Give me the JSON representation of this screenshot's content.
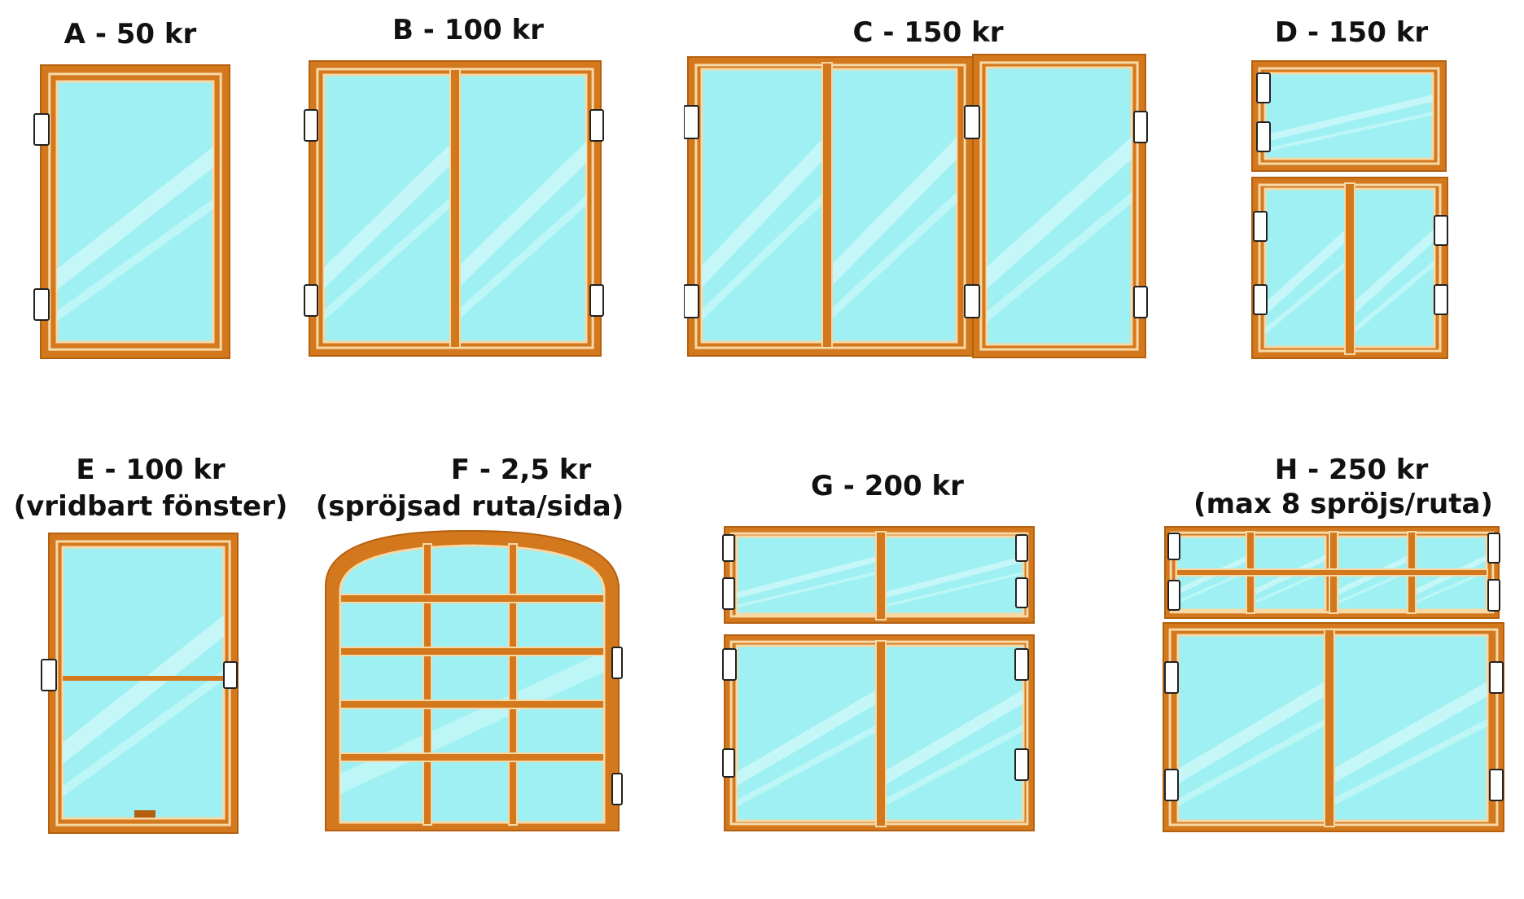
{
  "windows": [
    {
      "id": "A",
      "label": "A - 50 kr"
    },
    {
      "id": "B",
      "label": "B - 100 kr"
    },
    {
      "id": "C",
      "label": "C - 150 kr"
    },
    {
      "id": "D",
      "label": "D - 150 kr"
    },
    {
      "id": "E",
      "label": "E - 100 kr",
      "note": "(vridbart fönster)"
    },
    {
      "id": "F",
      "label": "F - 2,5 kr",
      "note": "(spröjsad ruta/sida)"
    },
    {
      "id": "G",
      "label": "G - 200 kr"
    },
    {
      "id": "H",
      "label": "H - 250 kr",
      "note": "(max 8 spröjs/ruta)"
    }
  ],
  "colors": {
    "frame": "#d4781e",
    "frame_dark": "#b5600f",
    "inner_line": "#f6d9a6",
    "glass": "#9ef0f3",
    "glare": "#d2fafa",
    "hinge_fill": "#ffffff",
    "hinge_stroke": "#222222"
  }
}
